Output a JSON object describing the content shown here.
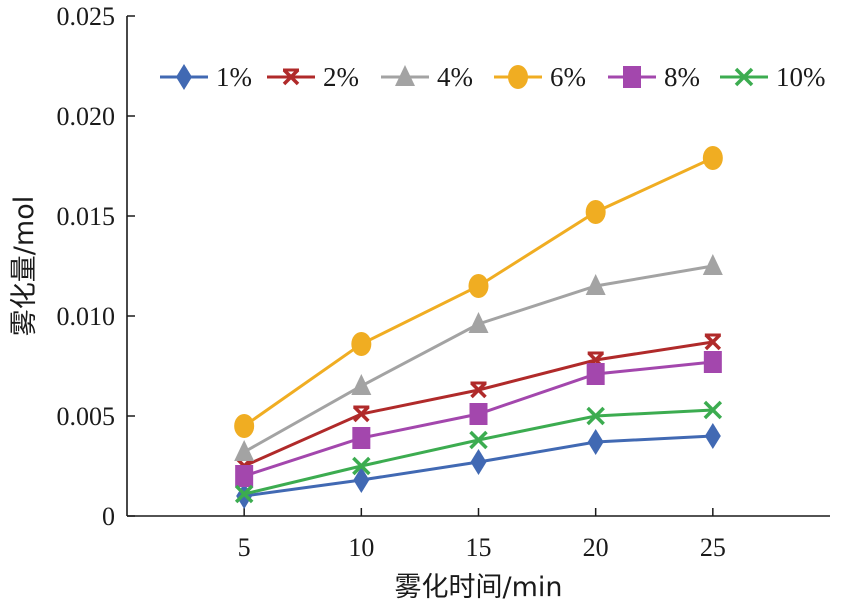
{
  "chart_data": {
    "type": "line",
    "xlabel": "雾化时间/min",
    "ylabel": "雾化量/mol",
    "x": [
      5,
      10,
      15,
      20,
      25
    ],
    "xlim": [
      0,
      30
    ],
    "ylim": [
      0,
      0.025
    ],
    "x_ticks": [
      "5",
      "10",
      "15",
      "20",
      "25"
    ],
    "y_ticks": [
      "0",
      "0.005",
      "0.010",
      "0.015",
      "0.020",
      "0.025"
    ],
    "legend_position": "top",
    "grid": false,
    "series": [
      {
        "name": "1%",
        "color": "#4169b3",
        "marker": "diamond",
        "values": [
          0.001,
          0.0018,
          0.0027,
          0.0037,
          0.004
        ]
      },
      {
        "name": "2%",
        "color": "#b02a2a",
        "marker": "star",
        "values": [
          0.0025,
          0.0051,
          0.0063,
          0.0078,
          0.0087
        ]
      },
      {
        "name": "4%",
        "color": "#a3a3a3",
        "marker": "triangle",
        "values": [
          0.0032,
          0.0065,
          0.0096,
          0.0115,
          0.0125
        ]
      },
      {
        "name": "6%",
        "color": "#f0ad22",
        "marker": "circle",
        "values": [
          0.0045,
          0.0086,
          0.0115,
          0.0152,
          0.0179
        ]
      },
      {
        "name": "8%",
        "color": "#a347ad",
        "marker": "square",
        "values": [
          0.002,
          0.0039,
          0.0051,
          0.0071,
          0.0077
        ]
      },
      {
        "name": "10%",
        "color": "#3cac50",
        "marker": "x",
        "values": [
          0.0011,
          0.0025,
          0.0038,
          0.005,
          0.0053
        ]
      }
    ]
  }
}
